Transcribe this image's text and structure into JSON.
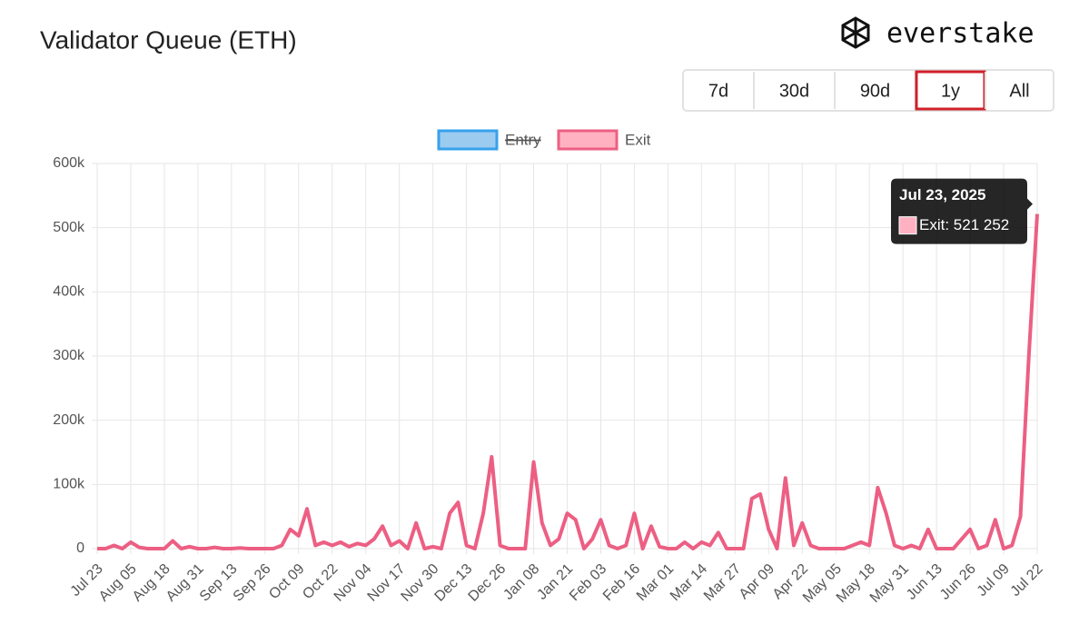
{
  "header": {
    "title": "Validator Queue (ETH)",
    "brand": "everstake"
  },
  "range_buttons": [
    {
      "label": "7d",
      "active": false
    },
    {
      "label": "30d",
      "active": false
    },
    {
      "label": "90d",
      "active": false
    },
    {
      "label": "1y",
      "active": true
    },
    {
      "label": "All",
      "active": false
    }
  ],
  "chart_data": {
    "type": "line",
    "legend": [
      {
        "name": "Entry",
        "color": "#36a2eb",
        "fill": "#9ccbf0",
        "hidden": true
      },
      {
        "name": "Exit",
        "color": "#ec5f83",
        "fill": "#ffb1c1",
        "hidden": false
      }
    ],
    "categories": [
      "Jul 23",
      null,
      null,
      null,
      "Aug 05",
      null,
      null,
      null,
      "Aug 18",
      null,
      null,
      null,
      "Aug 31",
      null,
      null,
      null,
      "Sep 13",
      null,
      null,
      null,
      "Sep 26",
      null,
      null,
      null,
      "Oct 09",
      null,
      null,
      null,
      "Oct 22",
      null,
      null,
      null,
      "Nov 04",
      null,
      null,
      null,
      "Nov 17",
      null,
      null,
      null,
      "Nov 30",
      null,
      null,
      null,
      "Dec 13",
      null,
      null,
      null,
      "Dec 26",
      null,
      null,
      null,
      "Jan 08",
      null,
      null,
      null,
      "Jan 21",
      null,
      null,
      null,
      "Feb 03",
      null,
      null,
      null,
      "Feb 16",
      null,
      null,
      null,
      "Mar 01",
      null,
      null,
      null,
      "Mar 14",
      null,
      null,
      null,
      "Mar 27",
      null,
      null,
      null,
      "Apr 09",
      null,
      null,
      null,
      "Apr 22",
      null,
      null,
      null,
      "May 05",
      null,
      null,
      null,
      "May 18",
      null,
      null,
      null,
      "May 31",
      null,
      null,
      null,
      "Jun 13",
      null,
      null,
      null,
      "Jun 26",
      null,
      null,
      null,
      "Jul 09",
      null,
      null,
      null,
      "Jul 22"
    ],
    "series": [
      {
        "name": "Exit",
        "color": "#ec5f83",
        "values": [
          0,
          0,
          5000,
          0,
          10000,
          2000,
          0,
          0,
          0,
          12000,
          0,
          3000,
          0,
          0,
          2000,
          0,
          0,
          1000,
          0,
          0,
          0,
          0,
          5000,
          30000,
          20000,
          62000,
          5000,
          10000,
          5000,
          10000,
          3000,
          8000,
          5000,
          15000,
          35000,
          5000,
          12000,
          0,
          40000,
          0,
          3000,
          0,
          55000,
          72000,
          5000,
          0,
          55000,
          143000,
          5000,
          0,
          0,
          0,
          135000,
          40000,
          5000,
          15000,
          55000,
          45000,
          0,
          15000,
          45000,
          5000,
          0,
          5000,
          55000,
          0,
          35000,
          3000,
          0,
          0,
          10000,
          0,
          10000,
          5000,
          25000,
          0,
          0,
          0,
          78000,
          85000,
          30000,
          0,
          110000,
          5000,
          40000,
          5000,
          0,
          0,
          0,
          0,
          5000,
          10000,
          5000,
          95000,
          55000,
          5000,
          0,
          5000,
          0,
          30000,
          0,
          0,
          0,
          15000,
          30000,
          0,
          5000,
          45000,
          0,
          5000,
          50000,
          300000,
          521252
        ]
      }
    ],
    "ylim": [
      0,
      600000
    ],
    "yticks": [
      0,
      {
        "value": 100000,
        "label": "100k"
      },
      {
        "value": 200000,
        "label": "200k"
      },
      {
        "value": 300000,
        "label": "300k"
      },
      {
        "value": 400000,
        "label": "400k"
      },
      {
        "value": 500000,
        "label": "500k"
      },
      {
        "value": 600000,
        "label": "600k"
      }
    ],
    "grid": true,
    "tooltip": {
      "title": "Jul 23, 2025",
      "label": "Exit: 521 252"
    }
  }
}
